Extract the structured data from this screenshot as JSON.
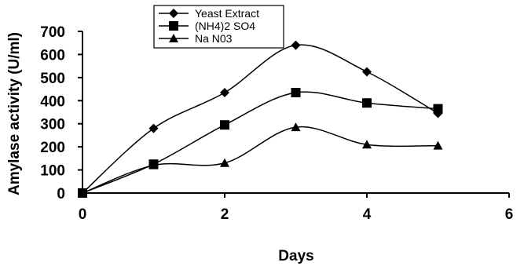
{
  "chart_data": {
    "type": "line",
    "title": "",
    "xlabel": "Days",
    "ylabel": "Amylase activity (U/ml)",
    "xlim": [
      0,
      6
    ],
    "ylim": [
      0,
      700
    ],
    "x_ticks": [
      "0",
      "2",
      "4",
      "6"
    ],
    "y_ticks": [
      "0",
      "100",
      "200",
      "300",
      "400",
      "500",
      "600",
      "700"
    ],
    "grid": false,
    "smooth": true,
    "legend_position": "top-center",
    "series": [
      {
        "name": "Yeast Extract",
        "marker": "diamond",
        "color": "#000000",
        "x": [
          0,
          1,
          2,
          3,
          4,
          5
        ],
        "y": [
          0,
          280,
          435,
          640,
          525,
          345
        ]
      },
      {
        "name": "(NH4)2 SO4",
        "marker": "square",
        "color": "#000000",
        "x": [
          0,
          1,
          2,
          3,
          4,
          5
        ],
        "y": [
          0,
          125,
          295,
          435,
          390,
          365
        ]
      },
      {
        "name": "Na N03",
        "marker": "triangle",
        "color": "#000000",
        "x": [
          0,
          1,
          2,
          3,
          4,
          5
        ],
        "y": [
          0,
          120,
          130,
          285,
          210,
          205
        ]
      }
    ]
  }
}
